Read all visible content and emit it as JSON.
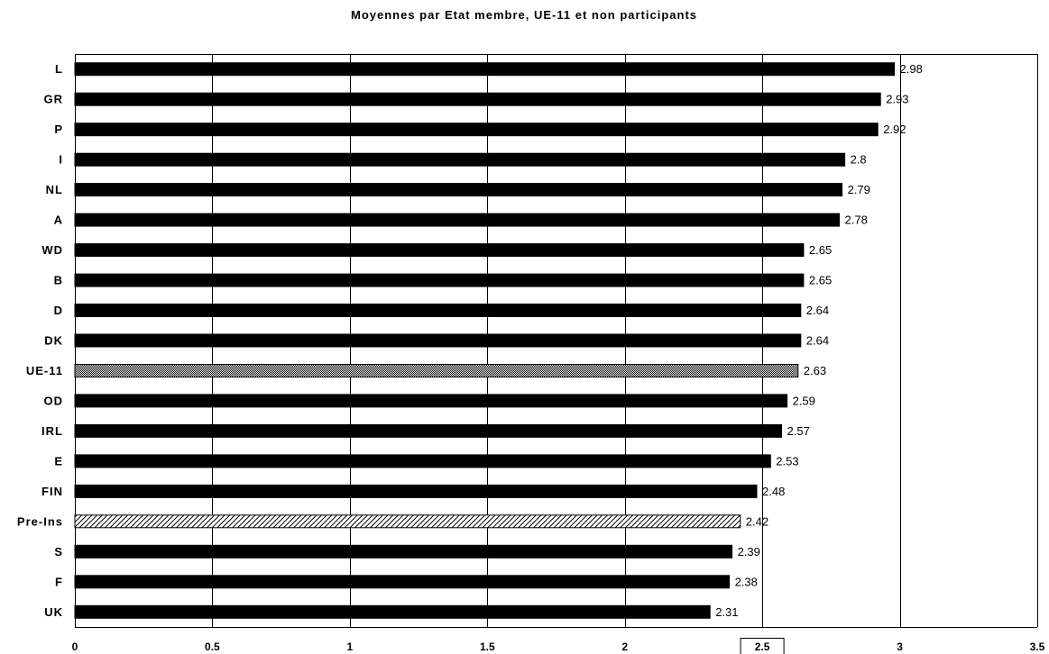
{
  "chart_data": {
    "type": "bar",
    "orientation": "horizontal",
    "title": "Moyennes par Etat membre, UE-11 et non participants",
    "categories": [
      "L",
      "GR",
      "P",
      "I",
      "NL",
      "A",
      "WD",
      "B",
      "D",
      "DK",
      "UE-11",
      "OD",
      "IRL",
      "E",
      "FIN",
      "Pre-Ins",
      "S",
      "F",
      "UK"
    ],
    "values": [
      2.98,
      2.93,
      2.92,
      2.8,
      2.79,
      2.78,
      2.65,
      2.65,
      2.64,
      2.64,
      2.63,
      2.59,
      2.57,
      2.53,
      2.48,
      2.42,
      2.39,
      2.38,
      2.31
    ],
    "value_labels": [
      "2.98",
      "2.93",
      "2.92",
      "2.8",
      "2.79",
      "2.78",
      "2.65",
      "2.65",
      "2.64",
      "2.64",
      "2.63",
      "2.59",
      "2.57",
      "2.53",
      "2.48",
      "2.42",
      "2.39",
      "2.38",
      "2.31"
    ],
    "bar_styles": [
      "solid",
      "solid",
      "solid",
      "solid",
      "solid",
      "solid",
      "solid",
      "solid",
      "solid",
      "solid",
      "dense-hatch",
      "solid",
      "solid",
      "solid",
      "solid",
      "diagonal-hatch",
      "solid",
      "solid",
      "solid"
    ],
    "xlim": [
      0,
      3.5
    ],
    "x_ticks": [
      "0",
      "0.5",
      "1",
      "1.5",
      "2",
      "2.5",
      "3",
      "3.5"
    ],
    "highlighted_tick": "2.5",
    "xlabel": "",
    "ylabel": "",
    "grid": "vertical",
    "legend": "none",
    "colors": {
      "bar_fill": "#000000",
      "hatch_line": "#000000",
      "gridline": "#000000",
      "background": "#ffffff"
    }
  }
}
